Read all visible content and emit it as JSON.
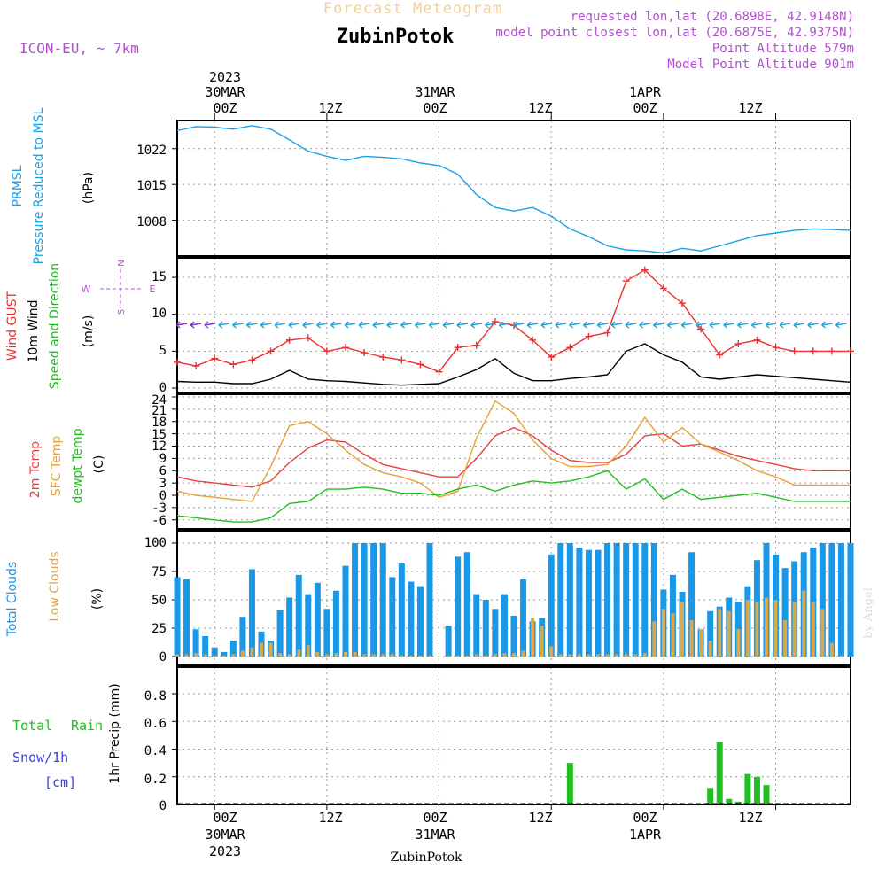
{
  "header": {
    "subtitle": "Forecast Meteogram",
    "station": "ZubinPotok",
    "model": "ICON-EU, ~ 7km",
    "requested": "requested lon,lat (20.6898E, 42.9148N)",
    "closest": "model point closest lon,lat (20.6875E, 42.9375N)",
    "altitude": "Point Altitude 579m",
    "model_altitude": "Model Point Altitude 901m",
    "footer_station": "ZubinPotok",
    "credit": "by Angel"
  },
  "time_axis": {
    "year": "2023",
    "top_dates": [
      "30MAR",
      "31MAR",
      "1APR"
    ],
    "bottom_dates": [
      "30MAR",
      "31MAR",
      "1APR"
    ],
    "ticks": [
      "00Z",
      "12Z",
      "00Z",
      "12Z",
      "00Z",
      "12Z"
    ]
  },
  "panels": {
    "pressure": {
      "label1": "PRMSL",
      "label2": "Pressure Reduced to MSL",
      "unit": "(hPa)",
      "ticks": [
        "1022",
        "1015",
        "1008"
      ]
    },
    "wind": {
      "label_gust": "Wind GUST",
      "label_wind": "10m Wind",
      "label_dir": "Speed and Direction",
      "unit": "(m/s)",
      "ticks": [
        "15",
        "10",
        "5",
        "0"
      ],
      "compass": {
        "n": "N",
        "s": "S",
        "e": "E",
        "w": "W"
      }
    },
    "temp": {
      "label1": "2m Temp",
      "label2": "SFC Temp",
      "label3": "dewpt Temp",
      "unit": "(C)",
      "ticks": [
        "24",
        "21",
        "18",
        "15",
        "12",
        "9",
        "6",
        "3",
        "0",
        "-3",
        "-6"
      ]
    },
    "clouds": {
      "label1": "Total Clouds",
      "label2": "Low Clouds",
      "unit": "(%)",
      "ticks": [
        "100",
        "75",
        "50",
        "25",
        "0"
      ]
    },
    "precip": {
      "label1": "Total",
      "label1b": "Rain",
      "label2": "Snow/1h",
      "label3": "[cm]",
      "unit": "1hr Precip (mm)",
      "ticks": [
        "0.8",
        "0.6",
        "0.4",
        "0.2",
        "0"
      ]
    }
  },
  "colors": {
    "pressure": "#1aa0e8",
    "gust": "#ee3030",
    "wind": "#000000",
    "temp": "#e84040",
    "sfc": "#e8a030",
    "dewpt": "#20c020",
    "total_clouds": "#1a98e8",
    "low_clouds": "#d8a850",
    "rain": "#20c020",
    "snow": "#4040e0",
    "model": "#b050d0"
  },
  "chart_data": {
    "type": "line",
    "time_hours_from_30MAR_00Z": [
      -4,
      68
    ],
    "series": [
      {
        "name": "PRMSL",
        "unit": "hPa",
        "x": [
          -4,
          -2,
          0,
          2,
          4,
          6,
          8,
          10,
          12,
          14,
          16,
          18,
          20,
          22,
          24,
          26,
          28,
          30,
          32,
          34,
          36,
          38,
          40,
          42,
          44,
          46,
          48,
          50,
          52,
          54,
          56,
          58,
          60,
          62,
          64,
          66,
          68
        ],
        "values": [
          1025.5,
          1026.3,
          1026.2,
          1025.8,
          1026.5,
          1025.8,
          1023.7,
          1021.5,
          1020.5,
          1019.7,
          1020.5,
          1020.3,
          1020.0,
          1019.2,
          1018.7,
          1017.0,
          1013.0,
          1010.5,
          1009.8,
          1010.5,
          1008.8,
          1006.3,
          1004.8,
          1003.0,
          1002.2,
          1002.0,
          1001.6,
          1002.5,
          1002.0,
          1003.0,
          1004.0,
          1005.0,
          1005.5,
          1006.0,
          1006.3,
          1006.2,
          1006.0
        ]
      },
      {
        "name": "Wind GUST",
        "unit": "m/s",
        "x": [
          -4,
          -2,
          0,
          2,
          4,
          6,
          8,
          10,
          12,
          14,
          16,
          18,
          20,
          22,
          24,
          26,
          28,
          30,
          32,
          34,
          36,
          38,
          40,
          42,
          44,
          46,
          48,
          50,
          52,
          54,
          56,
          58,
          60,
          62,
          64,
          66,
          68
        ],
        "values": [
          3.5,
          3.0,
          4.0,
          3.2,
          3.8,
          5.0,
          6.5,
          6.8,
          5.0,
          5.5,
          4.8,
          4.2,
          3.8,
          3.2,
          2.2,
          5.5,
          5.8,
          9.0,
          8.5,
          6.5,
          4.2,
          5.5,
          7.0,
          7.5,
          14.5,
          16.0,
          13.5,
          11.5,
          8.0,
          4.5,
          6.0,
          6.5,
          5.5,
          5.0,
          5.0,
          5.0,
          5.0
        ]
      },
      {
        "name": "10m Wind",
        "unit": "m/s",
        "x": [
          -4,
          -2,
          0,
          2,
          4,
          6,
          8,
          10,
          12,
          14,
          16,
          18,
          20,
          22,
          24,
          26,
          28,
          30,
          32,
          34,
          36,
          38,
          40,
          42,
          44,
          46,
          48,
          50,
          52,
          54,
          56,
          58,
          60,
          62,
          64,
          66,
          68
        ],
        "values": [
          0.9,
          0.8,
          0.8,
          0.6,
          0.6,
          1.2,
          2.4,
          1.2,
          1.0,
          0.9,
          0.7,
          0.5,
          0.4,
          0.5,
          0.6,
          1.5,
          2.5,
          4.0,
          2.0,
          1.0,
          1.0,
          1.3,
          1.5,
          1.8,
          5.0,
          6.0,
          4.5,
          3.5,
          1.5,
          1.2,
          1.5,
          1.8,
          1.6,
          1.4,
          1.2,
          1.0,
          0.8
        ]
      },
      {
        "name": "2m Temp",
        "unit": "C",
        "x": [
          -4,
          -2,
          0,
          2,
          4,
          6,
          8,
          10,
          12,
          14,
          16,
          18,
          20,
          22,
          24,
          26,
          28,
          30,
          32,
          34,
          36,
          38,
          40,
          42,
          44,
          46,
          48,
          50,
          52,
          54,
          56,
          58,
          60,
          62,
          64,
          66,
          68
        ],
        "values": [
          4.5,
          3.5,
          3.0,
          2.5,
          2.0,
          3.5,
          8.0,
          11.5,
          13.5,
          13.0,
          10.0,
          7.5,
          6.5,
          5.5,
          4.5,
          4.5,
          9.0,
          14.5,
          16.5,
          14.5,
          11.0,
          8.5,
          8.0,
          8.0,
          10.0,
          14.5,
          15.0,
          12.0,
          12.5,
          11.0,
          9.5,
          8.5,
          7.5,
          6.5,
          6.0,
          6.0,
          6.0
        ]
      },
      {
        "name": "SFC Temp",
        "unit": "C",
        "x": [
          -4,
          -2,
          0,
          2,
          4,
          6,
          8,
          10,
          12,
          14,
          16,
          18,
          20,
          22,
          24,
          26,
          28,
          30,
          32,
          34,
          36,
          38,
          40,
          42,
          44,
          46,
          48,
          50,
          52,
          54,
          56,
          58,
          60,
          62,
          64,
          66,
          68
        ],
        "values": [
          1.0,
          0.0,
          -0.5,
          -1.0,
          -1.5,
          7.0,
          17.0,
          18.0,
          15.0,
          11.0,
          7.5,
          5.5,
          4.5,
          3.0,
          -0.5,
          1.0,
          14.0,
          23.0,
          20.0,
          13.5,
          9.0,
          7.0,
          7.0,
          7.5,
          12.0,
          19.0,
          13.0,
          16.5,
          12.5,
          10.5,
          8.5,
          6.0,
          4.5,
          2.5,
          2.5,
          2.5,
          2.5
        ]
      },
      {
        "name": "dewpt Temp",
        "unit": "C",
        "x": [
          -4,
          -2,
          0,
          2,
          4,
          6,
          8,
          10,
          12,
          14,
          16,
          18,
          20,
          22,
          24,
          26,
          28,
          30,
          32,
          34,
          36,
          38,
          40,
          42,
          44,
          46,
          48,
          50,
          52,
          54,
          56,
          58,
          60,
          62,
          64,
          66,
          68
        ],
        "values": [
          -5.0,
          -5.5,
          -6.0,
          -6.5,
          -6.5,
          -5.5,
          -2.0,
          -1.5,
          1.5,
          1.5,
          2.0,
          1.5,
          0.5,
          0.5,
          0.0,
          1.5,
          2.5,
          1.0,
          2.5,
          3.5,
          3.0,
          3.5,
          4.5,
          6.0,
          1.5,
          4.0,
          -1.0,
          1.5,
          -1.0,
          -0.5,
          0.0,
          0.5,
          -0.5,
          -1.5,
          -1.5,
          -1.5,
          -1.5
        ]
      }
    ],
    "bars": [
      {
        "name": "Total Clouds",
        "unit": "%",
        "x": [
          -4,
          -3,
          -2,
          -1,
          0,
          1,
          2,
          3,
          4,
          5,
          6,
          7,
          8,
          9,
          10,
          11,
          12,
          13,
          14,
          15,
          16,
          17,
          18,
          19,
          20,
          21,
          22,
          23,
          24,
          25,
          26,
          27,
          28,
          29,
          30,
          31,
          32,
          33,
          34,
          35,
          36,
          37,
          38,
          39,
          40,
          41,
          42,
          43,
          44,
          45,
          46,
          47,
          48,
          49,
          50,
          51,
          52,
          53,
          54,
          55,
          56,
          57,
          58,
          59,
          60,
          61,
          62,
          63,
          64,
          65,
          66,
          67,
          68
        ],
        "values": [
          70,
          68,
          24,
          18,
          8,
          4,
          14,
          35,
          77,
          22,
          14,
          41,
          52,
          72,
          55,
          65,
          42,
          58,
          80,
          100,
          100,
          100,
          100,
          70,
          82,
          66,
          62,
          100,
          0,
          27,
          88,
          92,
          55,
          50,
          42,
          55,
          36,
          68,
          31,
          34,
          90,
          100,
          100,
          96,
          94,
          94,
          100,
          100,
          100,
          100,
          100,
          100,
          59,
          72,
          57,
          92,
          24,
          40,
          44,
          52,
          48,
          62,
          85,
          100,
          90,
          78,
          84,
          92,
          96,
          100,
          100,
          100,
          100
        ]
      },
      {
        "name": "Low Clouds",
        "unit": "%",
        "x": [
          -4,
          -3,
          -2,
          -1,
          0,
          1,
          2,
          3,
          4,
          5,
          6,
          7,
          8,
          9,
          10,
          11,
          12,
          13,
          14,
          15,
          16,
          17,
          18,
          19,
          20,
          21,
          22,
          23,
          24,
          25,
          26,
          27,
          28,
          29,
          30,
          31,
          32,
          33,
          34,
          35,
          36,
          37,
          38,
          39,
          40,
          41,
          42,
          43,
          44,
          45,
          46,
          47,
          48,
          49,
          50,
          51,
          52,
          53,
          54,
          55,
          56,
          57,
          58,
          59,
          60,
          61,
          62,
          63,
          64,
          65,
          66,
          67,
          68
        ],
        "values": [
          2,
          2,
          3,
          2,
          1,
          1,
          2,
          5,
          8,
          12,
          12,
          3,
          2,
          6,
          10,
          4,
          2,
          3,
          4,
          4,
          2,
          2,
          2,
          2,
          1,
          1,
          1,
          1,
          0,
          1,
          1,
          1,
          2,
          1,
          2,
          3,
          3,
          5,
          34,
          27,
          9,
          2,
          2,
          2,
          2,
          2,
          2,
          2,
          2,
          2,
          3,
          31,
          42,
          38,
          48,
          32,
          24,
          14,
          42,
          40,
          24,
          50,
          48,
          52,
          50,
          32,
          48,
          58,
          48,
          42,
          12,
          1,
          0
        ]
      },
      {
        "name": "1hr Precip",
        "unit": "mm",
        "x": [
          38,
          43,
          53,
          54,
          55,
          56,
          57,
          58,
          59
        ],
        "values": [
          0.3,
          0.01,
          0.12,
          0.45,
          0.04,
          0.02,
          0.22,
          0.2,
          0.14
        ]
      }
    ]
  }
}
